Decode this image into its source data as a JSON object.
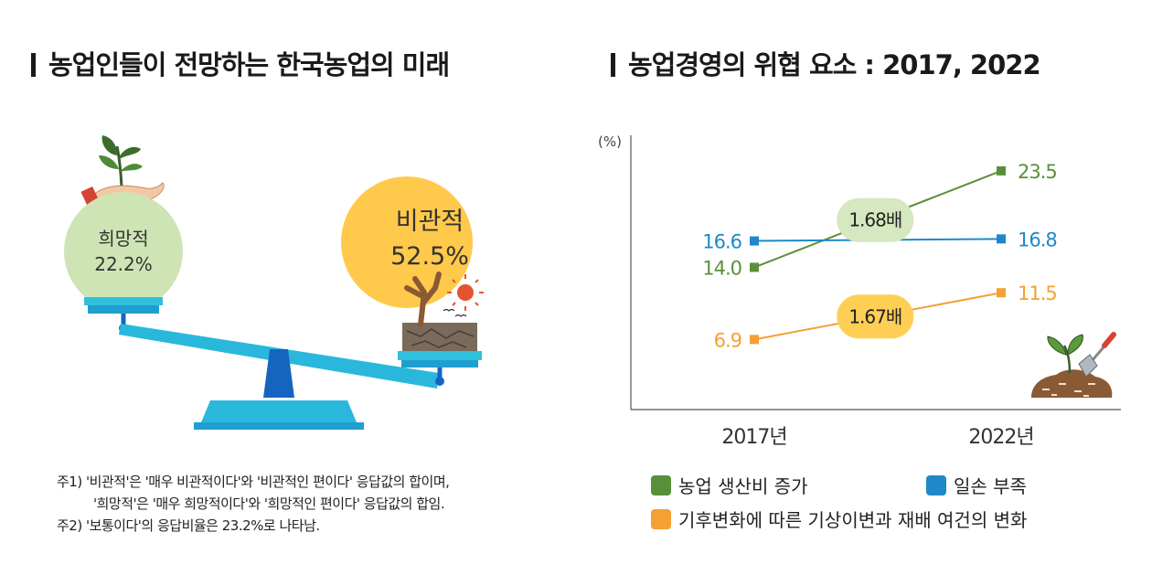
{
  "left": {
    "title": "농업인들이 전망하는 한국농업의 미래",
    "hope_label": "희망적",
    "hope_value": "22.2%",
    "pess_label": "비관적",
    "pess_value": "52.5%",
    "notes": [
      "주1) '비관적'은 '매우 비관적이다'와 '비관적인 편이다' 응답값의 합이며,",
      "'희망적'은 '매우 희망적이다'와 '희망적인 편이다' 응답값의 합임.",
      "주2) '보통이다'의 응답비율은 23.2%로 나타남."
    ]
  },
  "right": {
    "title": "농업경영의 위협 요소 : 2017, 2022"
  },
  "chart_data": {
    "type": "line",
    "title": "농업경영의 위협 요소 : 2017, 2022",
    "ylabel": "(%)",
    "xlabel": "",
    "categories": [
      "2017년",
      "2022년"
    ],
    "ylim": [
      0,
      27
    ],
    "grid": false,
    "legend_position": "bottom",
    "series": [
      {
        "name": "농업 생산비 증가",
        "color": "#5a8f3a",
        "values": [
          14.0,
          23.5
        ],
        "labels": [
          "14.0",
          "23.5"
        ]
      },
      {
        "name": "일손 부족",
        "color": "#1f88c9",
        "values": [
          16.6,
          16.8
        ],
        "labels": [
          "16.6",
          "16.8"
        ]
      },
      {
        "name": "기후변화에 따른 기상이변과 재배 여건의 변화",
        "color": "#f5a033",
        "values": [
          6.9,
          11.5
        ],
        "labels": [
          "6.9",
          "11.5"
        ]
      }
    ],
    "annotations": [
      "1.68배",
      "1.67배"
    ]
  }
}
